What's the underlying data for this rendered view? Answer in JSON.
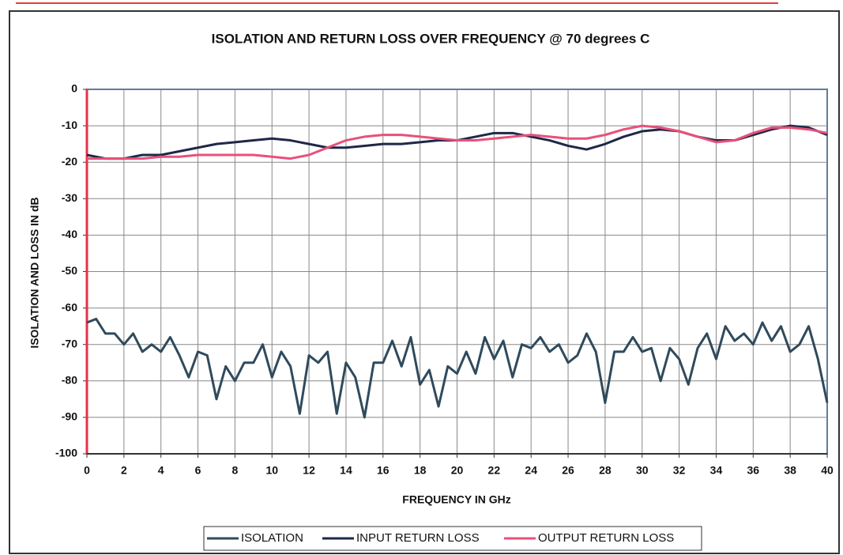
{
  "chart_data": {
    "type": "line",
    "title": "ISOLATION AND RETURN LOSS OVER FREQUENCY @ 70 degrees C",
    "x_label": "FREQUENCY IN GHz",
    "y_label": "ISOLATION AND LOSS IN dB",
    "xlim": [
      0,
      40
    ],
    "xticks": [
      0,
      2,
      4,
      6,
      8,
      10,
      12,
      14,
      16,
      18,
      20,
      22,
      24,
      26,
      28,
      30,
      32,
      34,
      36,
      38,
      40
    ],
    "ylim": [
      -100,
      0
    ],
    "yticks": [
      0,
      -10,
      -20,
      -30,
      -40,
      -50,
      -60,
      -70,
      -80,
      -90,
      -100
    ],
    "grid": true,
    "legend": "bottom",
    "series": [
      {
        "name": "ISOLATION",
        "color": "#2f4a5c",
        "x": [
          0,
          0.5,
          1,
          1.5,
          2,
          2.5,
          3,
          3.5,
          4,
          4.5,
          5,
          5.5,
          6,
          6.5,
          7,
          7.5,
          8,
          8.5,
          9,
          9.5,
          10,
          10.5,
          11,
          11.5,
          12,
          12.5,
          13,
          13.5,
          14,
          14.5,
          15,
          15.5,
          16,
          16.5,
          17,
          17.5,
          18,
          18.5,
          19,
          19.5,
          20,
          20.5,
          21,
          21.5,
          22,
          22.5,
          23,
          23.5,
          24,
          24.5,
          25,
          25.5,
          26,
          26.5,
          27,
          27.5,
          28,
          28.5,
          29,
          29.5,
          30,
          30.5,
          31,
          31.5,
          32,
          32.5,
          33,
          33.5,
          34,
          34.5,
          35,
          35.5,
          36,
          36.5,
          37,
          37.5,
          38,
          38.5,
          39,
          39.5,
          40
        ],
        "values": [
          -64,
          -63,
          -67,
          -67,
          -70,
          -67,
          -72,
          -70,
          -72,
          -68,
          -73,
          -79,
          -72,
          -73,
          -85,
          -76,
          -80,
          -75,
          -75,
          -70,
          -79,
          -72,
          -76,
          -89,
          -73,
          -75,
          -72,
          -89,
          -75,
          -79,
          -90,
          -75,
          -75,
          -69,
          -76,
          -68,
          -81,
          -77,
          -87,
          -76,
          -78,
          -72,
          -78,
          -68,
          -74,
          -69,
          -79,
          -70,
          -71,
          -68,
          -72,
          -70,
          -75,
          -73,
          -67,
          -72,
          -86,
          -72,
          -72,
          -68,
          -72,
          -71,
          -80,
          -71,
          -74,
          -81,
          -71,
          -67,
          -74,
          -65,
          -69,
          -67,
          -70,
          -64,
          -69,
          -65,
          -72,
          -70,
          -65,
          -74,
          -86
        ]
      },
      {
        "name": "INPUT RETURN LOSS",
        "color": "#1e2848",
        "x": [
          0,
          1,
          2,
          3,
          4,
          5,
          6,
          7,
          8,
          9,
          10,
          11,
          12,
          13,
          14,
          15,
          16,
          17,
          18,
          19,
          20,
          21,
          22,
          23,
          24,
          25,
          26,
          27,
          28,
          29,
          30,
          31,
          32,
          33,
          34,
          35,
          36,
          37,
          38,
          39,
          40
        ],
        "values": [
          -18,
          -19,
          -19,
          -18,
          -18,
          -17,
          -16,
          -15,
          -14.5,
          -14,
          -13.5,
          -14,
          -15,
          -16,
          -16,
          -15.5,
          -15,
          -15,
          -14.5,
          -14,
          -14,
          -13,
          -12,
          -12,
          -13,
          -14,
          -15.5,
          -16.5,
          -15,
          -13,
          -11.5,
          -11,
          -11.5,
          -13,
          -14,
          -14,
          -12.5,
          -11,
          -10,
          -10.5,
          -12.5
        ]
      },
      {
        "name": "OUTPUT RETURN LOSS",
        "color": "#e8507a",
        "x": [
          0,
          1,
          2,
          3,
          4,
          5,
          6,
          7,
          8,
          9,
          10,
          11,
          12,
          13,
          14,
          15,
          16,
          17,
          18,
          19,
          20,
          21,
          22,
          23,
          24,
          25,
          26,
          27,
          28,
          29,
          30,
          31,
          32,
          33,
          34,
          35,
          36,
          37,
          38,
          39,
          40
        ],
        "values": [
          -19,
          -19,
          -19,
          -19,
          -18.5,
          -18.5,
          -18,
          -18,
          -18,
          -18,
          -18.5,
          -19,
          -18,
          -16,
          -14,
          -13,
          -12.5,
          -12.5,
          -13,
          -13.5,
          -14,
          -14,
          -13.5,
          -13,
          -12.5,
          -13,
          -13.5,
          -13.5,
          -12.5,
          -11,
          -10,
          -10.5,
          -11.5,
          -13,
          -14.5,
          -14,
          -12,
          -10.5,
          -10.5,
          -11,
          -12
        ]
      }
    ]
  }
}
